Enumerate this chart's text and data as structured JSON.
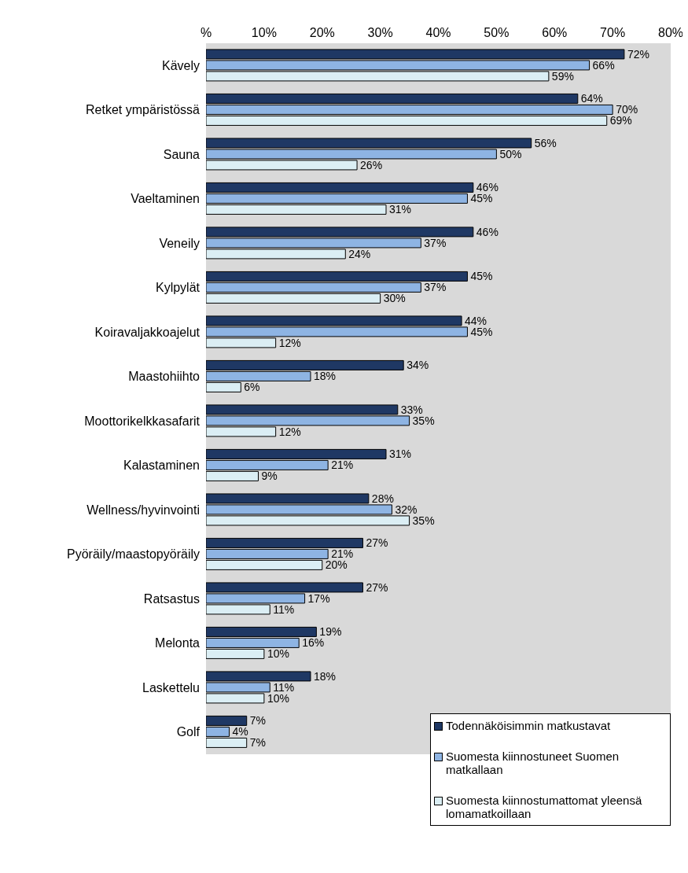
{
  "chart_data": {
    "type": "bar",
    "orientation": "horizontal",
    "categories": [
      "Kävely",
      "Retket ympäristössä",
      "Sauna",
      "Vaeltaminen",
      "Veneily",
      "Kylpylät",
      "Koiravaljakkoajelut",
      "Maastohiihto",
      "Moottorikelkkasafarit",
      "Kalastaminen",
      "Wellness/hyvinvointi",
      "Pyöräily/maastopyöräily",
      "Ratsastus",
      "Melonta",
      "Laskettelu",
      "Golf"
    ],
    "series": [
      {
        "name": "Todennäköisimmin matkustavat",
        "color": "#1f3864",
        "values": [
          72,
          64,
          56,
          46,
          46,
          45,
          44,
          34,
          33,
          31,
          28,
          27,
          27,
          19,
          18,
          7
        ],
        "value_labels": [
          "72%",
          "64%",
          "56%",
          "46%",
          "46%",
          "45%",
          "44%",
          "34%",
          "33%",
          "31%",
          "28%",
          "27%",
          "27%",
          "19%",
          "18%",
          "7%"
        ]
      },
      {
        "name": "Suomesta kiinnostuneet Suomen matkallaan",
        "color": "#8eb4e3",
        "values": [
          66,
          70,
          50,
          45,
          37,
          37,
          45,
          18,
          35,
          21,
          32,
          21,
          17,
          16,
          11,
          4
        ],
        "value_labels": [
          "66%",
          "70%",
          "50%",
          "45%",
          "37%",
          "37%",
          "45%",
          "18%",
          "35%",
          "21%",
          "32%",
          "21%",
          "17%",
          "16%",
          "11%",
          "4%"
        ]
      },
      {
        "name": "Suomesta kiinnostumattomat yleensä lomamatkoillaan",
        "color": "#dbeef4",
        "values": [
          59,
          69,
          26,
          31,
          24,
          30,
          12,
          6,
          12,
          9,
          35,
          20,
          11,
          10,
          10,
          7
        ],
        "value_labels": [
          "59%",
          "69%",
          "26%",
          "31%",
          "24%",
          "30%",
          "12%",
          "6%",
          "12%",
          "9%",
          "35%",
          "20%",
          "11%",
          "10%",
          "10%",
          "7%"
        ]
      }
    ],
    "xlim": [
      0,
      80
    ],
    "xticks": [
      {
        "value": 0,
        "label": "%"
      },
      {
        "value": 10,
        "label": "10%"
      },
      {
        "value": 20,
        "label": "20%"
      },
      {
        "value": 30,
        "label": "30%"
      },
      {
        "value": 40,
        "label": "40%"
      },
      {
        "value": 50,
        "label": "50%"
      },
      {
        "value": 60,
        "label": "60%"
      },
      {
        "value": 70,
        "label": "70%"
      },
      {
        "value": 80,
        "label": "80%"
      }
    ],
    "legend": "bottom right"
  }
}
